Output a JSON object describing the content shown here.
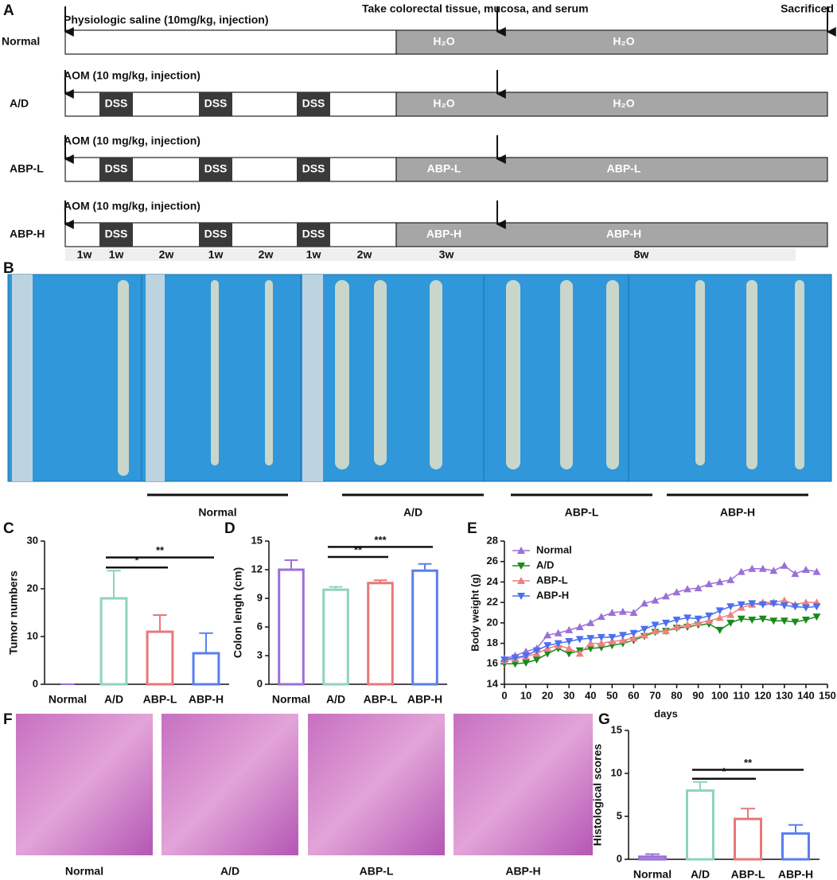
{
  "timeline": {
    "panel_label": "A",
    "take_note": "Take colorectal tissue, mucosa, and serum",
    "end_note": "Sacrificed",
    "rows": [
      {
        "group": "Normal",
        "note": "Physiologic saline (10mg/kg, injection)",
        "dss": [],
        "phases": [
          "H₂O",
          "H₂O"
        ]
      },
      {
        "group": "A/D",
        "note": "AOM (10 mg/kg, injection)",
        "dss": [
          "DSS",
          "DSS",
          "DSS"
        ],
        "phases": [
          "H₂O",
          "H₂O"
        ]
      },
      {
        "group": "ABP-L",
        "note": "AOM (10 mg/kg, injection)",
        "dss": [
          "DSS",
          "DSS",
          "DSS"
        ],
        "phases": [
          "ABP-L",
          "ABP-L"
        ]
      },
      {
        "group": "ABP-H",
        "note": "AOM (10 mg/kg, injection)",
        "dss": [
          "DSS",
          "DSS",
          "DSS"
        ],
        "phases": [
          "ABP-H",
          "ABP-H"
        ]
      }
    ],
    "durations": [
      "1w",
      "1w",
      "2w",
      "1w",
      "2w",
      "1w",
      "2w",
      "3w",
      "8w"
    ]
  },
  "photos": {
    "panel_label": "B",
    "groups": [
      "Normal",
      "A/D",
      "ABP-L",
      "ABP-H"
    ]
  },
  "histology": {
    "panel_label": "F",
    "groups": [
      "Normal",
      "A/D",
      "ABP-L",
      "ABP-H"
    ]
  },
  "chart_data": [
    {
      "type": "bar",
      "panel_label": "C",
      "ylabel": "Tumor numbers",
      "categories": [
        "Normal",
        "A/D",
        "ABP-L",
        "ABP-H"
      ],
      "values": [
        0,
        18,
        11,
        6.5
      ],
      "errors": [
        0,
        5.8,
        3.5,
        4.2
      ],
      "colors": [
        "#9b70d6",
        "#8fd4b8",
        "#e87878",
        "#5a7ef0"
      ],
      "ylim": [
        0,
        30
      ],
      "yticks": [
        0,
        10,
        20,
        30
      ],
      "significance": [
        {
          "label": "*",
          "between": [
            "A/D",
            "ABP-L"
          ]
        },
        {
          "label": "**",
          "between": [
            "A/D",
            "ABP-H"
          ]
        }
      ]
    },
    {
      "type": "bar",
      "panel_label": "D",
      "ylabel": "Colon lengh (cm)",
      "categories": [
        "Normal",
        "A/D",
        "ABP-L",
        "ABP-H"
      ],
      "values": [
        12,
        9.9,
        10.6,
        11.9
      ],
      "errors": [
        1,
        0.3,
        0.3,
        0.7
      ],
      "colors": [
        "#9b70d6",
        "#8fd4b8",
        "#e87878",
        "#5a7ef0"
      ],
      "ylim": [
        0,
        15
      ],
      "yticks": [
        0,
        3,
        6,
        9,
        12,
        15
      ],
      "significance": [
        {
          "label": "**",
          "between": [
            "A/D",
            "ABP-L"
          ]
        },
        {
          "label": "***",
          "between": [
            "A/D",
            "ABP-H"
          ]
        }
      ]
    },
    {
      "type": "line",
      "panel_label": "E",
      "ylabel": "Body weight (g)",
      "xlabel": "days",
      "x": [
        0,
        5,
        10,
        15,
        20,
        25,
        30,
        35,
        40,
        45,
        50,
        55,
        60,
        65,
        70,
        75,
        80,
        85,
        90,
        95,
        100,
        105,
        110,
        115,
        120,
        125,
        130,
        135,
        140,
        145
      ],
      "series": [
        {
          "name": "Normal",
          "color": "#9b70d6",
          "values": [
            16.5,
            16.8,
            17.2,
            17.5,
            18.8,
            19,
            19.3,
            19.6,
            20,
            20.6,
            21,
            21.1,
            21,
            21.9,
            22.2,
            22.6,
            23,
            23.3,
            23.4,
            23.8,
            24,
            24.2,
            25,
            25.3,
            25.3,
            25.1,
            25.6,
            24.8,
            25.2,
            25
          ]
        },
        {
          "name": "A/D",
          "color": "#1a8a1a",
          "values": [
            16,
            16,
            16.1,
            16.4,
            17,
            17.5,
            17,
            17.3,
            17.5,
            17.6,
            17.8,
            18,
            18.3,
            18.7,
            19.1,
            19.2,
            19.5,
            19.6,
            19.8,
            19.9,
            19.3,
            20,
            20.4,
            20.3,
            20.4,
            20.2,
            20.2,
            20.1,
            20.3,
            20.6
          ]
        },
        {
          "name": "ABP-L",
          "color": "#f08080",
          "values": [
            16.3,
            16.5,
            16.7,
            17,
            17.5,
            17.8,
            17.5,
            17,
            18,
            18,
            18.2,
            18.3,
            18.5,
            18.8,
            19.2,
            19.2,
            19.6,
            19.8,
            20,
            20.2,
            20.5,
            20.8,
            21.5,
            21.8,
            22,
            22,
            22.2,
            21.8,
            22,
            22
          ]
        },
        {
          "name": "ABP-H",
          "color": "#4a6ff0",
          "values": [
            16.4,
            16.6,
            16.8,
            17.3,
            17.8,
            18,
            18.2,
            18.4,
            18.5,
            18.6,
            18.6,
            18.8,
            19,
            19.4,
            19.8,
            20,
            20.3,
            20.5,
            20.4,
            20.7,
            21.2,
            21.6,
            21.8,
            21.9,
            21.8,
            21.9,
            21.7,
            21.6,
            21.5,
            21.6
          ]
        }
      ],
      "xlim": [
        0,
        150
      ],
      "xticks": [
        0,
        10,
        20,
        30,
        40,
        50,
        60,
        70,
        80,
        90,
        100,
        110,
        120,
        130,
        140,
        150
      ],
      "ylim": [
        14,
        28
      ],
      "yticks": [
        14,
        16,
        18,
        20,
        22,
        24,
        26,
        28
      ],
      "legend": "top-left"
    },
    {
      "type": "bar",
      "panel_label": "G",
      "ylabel": "Histological scores",
      "categories": [
        "Normal",
        "A/D",
        "ABP-L",
        "ABP-H"
      ],
      "values": [
        0.3,
        8,
        4.7,
        3
      ],
      "errors": [
        0.3,
        1,
        1.2,
        1
      ],
      "colors": [
        "#9b70d6",
        "#8fd4b8",
        "#e87878",
        "#5a7ef0"
      ],
      "ylim": [
        0,
        15
      ],
      "yticks": [
        0,
        5,
        10,
        15
      ],
      "significance": [
        {
          "label": "*",
          "between": [
            "A/D",
            "ABP-L"
          ]
        },
        {
          "label": "**",
          "between": [
            "A/D",
            "ABP-H"
          ]
        }
      ]
    }
  ]
}
